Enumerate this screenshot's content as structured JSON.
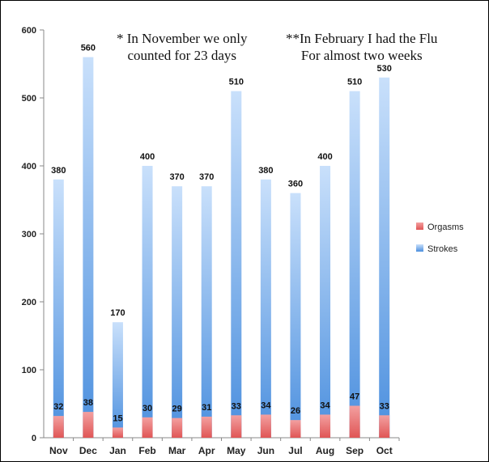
{
  "chart_data": {
    "type": "bar",
    "title": "",
    "xlabel": "",
    "ylabel": "",
    "ylim": [
      0,
      600
    ],
    "yticks": [
      0,
      100,
      200,
      300,
      400,
      500,
      600
    ],
    "categories": [
      "Nov",
      "Dec",
      "Jan",
      "Feb",
      "Mar",
      "Apr",
      "May",
      "Jun",
      "Jul",
      "Aug",
      "Sep",
      "Oct"
    ],
    "series": [
      {
        "name": "Orgasms",
        "color": "#e25c5c",
        "values": [
          32,
          38,
          15,
          30,
          29,
          31,
          33,
          34,
          26,
          34,
          47,
          33
        ]
      },
      {
        "name": "Strokes",
        "color": "#5f9ee6",
        "values": [
          380,
          560,
          170,
          400,
          370,
          370,
          510,
          380,
          360,
          400,
          510,
          530
        ]
      }
    ],
    "overlap": true,
    "grid": false,
    "legend_position": "right",
    "annotations": [
      "* In November we only\ncounted for 23 days",
      "**In February I had the Flu\nFor almost two weeks"
    ]
  }
}
